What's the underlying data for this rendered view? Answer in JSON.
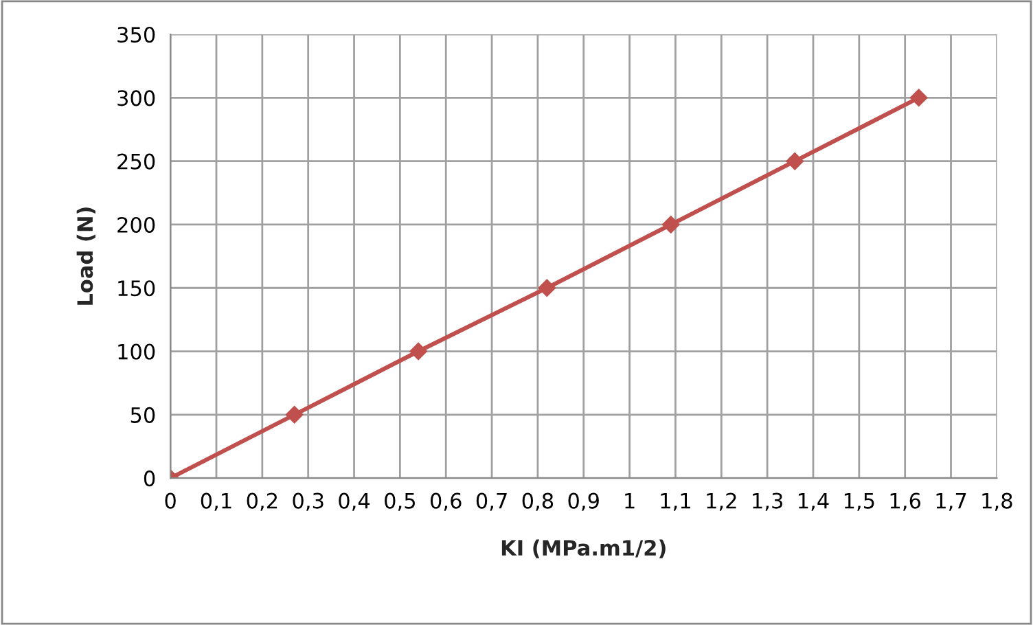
{
  "chart_data": {
    "type": "line",
    "xlabel": "KI (MPa.m1/2)",
    "ylabel": "Load (N)",
    "x": [
      0,
      0.27,
      0.54,
      0.82,
      1.09,
      1.36,
      1.63
    ],
    "series": [
      {
        "color": "#c0504d",
        "values": [
          0,
          50,
          100,
          150,
          200,
          250,
          300
        ]
      }
    ],
    "xlim": [
      0,
      1.8
    ],
    "xticks": [
      0,
      {
        "value": 0.1,
        "label": "0,1"
      },
      {
        "value": 0.2,
        "label": "0,2"
      },
      {
        "value": 0.3,
        "label": "0,3"
      },
      {
        "value": 0.4,
        "label": "0,4"
      },
      {
        "value": 0.5,
        "label": "0,5"
      },
      {
        "value": 0.6,
        "label": "0,6"
      },
      {
        "value": 0.7,
        "label": "0,7"
      },
      {
        "value": 0.8,
        "label": "0,8"
      },
      {
        "value": 0.9,
        "label": "0,9"
      },
      1,
      {
        "value": 1.1,
        "label": "1,1"
      },
      {
        "value": 1.2,
        "label": "1,2"
      },
      {
        "value": 1.3,
        "label": "1,3"
      },
      {
        "value": 1.4,
        "label": "1,4"
      },
      {
        "value": 1.5,
        "label": "1,5"
      },
      {
        "value": 1.6,
        "label": "1,6"
      },
      {
        "value": 1.7,
        "label": "1,7"
      },
      {
        "value": 1.8,
        "label": "1,8"
      }
    ],
    "ylim": [
      0,
      350
    ],
    "yticks": [
      0,
      50,
      100,
      150,
      200,
      250,
      300,
      350
    ],
    "grid": true,
    "marker": "diamond",
    "line_style": "solid"
  }
}
